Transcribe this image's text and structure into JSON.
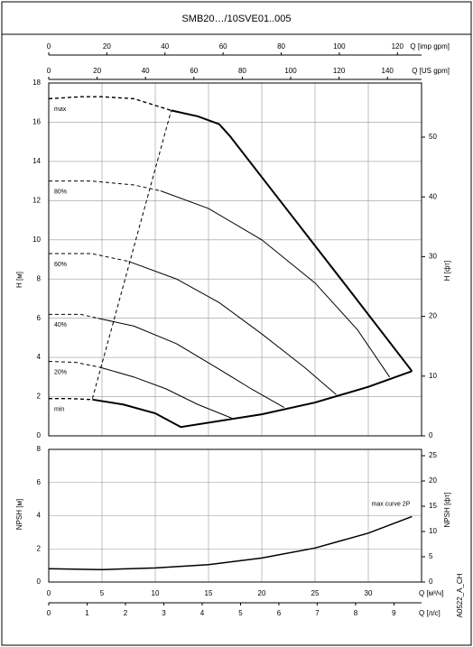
{
  "chart_data": [
    {
      "type": "line",
      "title": "SMB20…/10SVE01..005",
      "xlim": [
        0,
        35
      ],
      "xticks": [
        0,
        5,
        10,
        15,
        20,
        25,
        30
      ],
      "ylim": [
        0,
        18
      ],
      "yticks": [
        0,
        2,
        4,
        6,
        8,
        10,
        12,
        14,
        16,
        18
      ],
      "ylabel": "H [м]",
      "y2lim": [
        0,
        59.06
      ],
      "y2ticks": [
        0,
        10,
        20,
        30,
        40,
        50
      ],
      "y2label": "H [фт]",
      "top_axes": [
        {
          "label": "Q [imp gpm]",
          "lim": [
            0,
            128.3
          ],
          "ticks": [
            0,
            20,
            40,
            60,
            80,
            100,
            120
          ]
        },
        {
          "label": "Q [US gpm]",
          "lim": [
            0,
            154.1
          ],
          "ticks": [
            0,
            20,
            40,
            60,
            80,
            100,
            120,
            140
          ]
        }
      ],
      "grid": true,
      "color": "#000000",
      "series": [
        {
          "name": "max",
          "width": 2,
          "dashed_until_index": 4,
          "x": [
            0,
            3,
            5,
            8,
            11.5,
            14,
            16,
            17,
            22,
            28,
            34.1
          ],
          "values": [
            17.2,
            17.3,
            17.3,
            17.2,
            16.6,
            16.3,
            15.9,
            15.3,
            11.8,
            7.6,
            3.3
          ]
        },
        {
          "name": "80%",
          "width": 1,
          "dashed_until_index": 3,
          "x": [
            0,
            4,
            8,
            10.5,
            15,
            20,
            25,
            29,
            32
          ],
          "values": [
            13.0,
            13.0,
            12.8,
            12.5,
            11.6,
            10.0,
            7.8,
            5.4,
            3.0
          ]
        },
        {
          "name": "60%",
          "width": 1,
          "dashed_until_index": 2,
          "x": [
            0,
            4,
            7.5,
            12,
            16,
            20,
            24,
            27
          ],
          "values": [
            9.3,
            9.3,
            8.9,
            8.0,
            6.8,
            5.2,
            3.5,
            2.1
          ]
        },
        {
          "name": "40%",
          "width": 1,
          "dashed_until_index": 2,
          "x": [
            0,
            3,
            4.6,
            8,
            12,
            16,
            19,
            22.1
          ],
          "values": [
            6.2,
            6.2,
            6.0,
            5.6,
            4.7,
            3.4,
            2.4,
            1.45
          ]
        },
        {
          "name": "20%",
          "width": 1,
          "dashed_until_index": 2,
          "x": [
            0,
            2.5,
            4.8,
            8,
            11,
            14,
            17.2
          ],
          "values": [
            3.8,
            3.75,
            3.5,
            3.0,
            2.4,
            1.6,
            0.9
          ]
        },
        {
          "name": "min",
          "width": 2,
          "dashed_until_index": 2,
          "x": [
            0,
            2,
            4.1,
            7,
            10,
            12.4,
            20,
            25,
            30,
            34.1
          ],
          "values": [
            1.9,
            1.9,
            1.85,
            1.6,
            1.15,
            0.45,
            1.1,
            1.7,
            2.5,
            3.3
          ]
        },
        {
          "width": 1,
          "dashed_until_index": 1,
          "x": [
            4.1,
            11.5
          ],
          "values": [
            1.9,
            16.6
          ]
        }
      ]
    },
    {
      "type": "line",
      "xlim": [
        0,
        35
      ],
      "xticks": [
        0,
        5,
        10,
        15,
        20,
        25,
        30
      ],
      "xlabel": "Q [м³/ч]",
      "x2lim": [
        0,
        9.72
      ],
      "x2ticks": [
        0,
        1,
        2,
        3,
        4,
        5,
        6,
        7,
        8,
        9
      ],
      "x2label": "Q [л/с]",
      "ylim": [
        0,
        8
      ],
      "yticks": [
        0,
        2,
        4,
        6,
        8
      ],
      "ylabel": "NPSH [м]",
      "y2lim": [
        0,
        26.25
      ],
      "y2ticks": [
        0,
        5,
        10,
        15,
        20,
        25
      ],
      "y2label": "NPSH [фт]",
      "grid": true,
      "color": "#000000",
      "code": "A0522_A_CH",
      "series": [
        {
          "name": "max curve 2P",
          "width": 1.5,
          "dashed_until_index": 0,
          "x": [
            0,
            5,
            10,
            15,
            20,
            25,
            30,
            34.1
          ],
          "values": [
            0.8,
            0.75,
            0.85,
            1.05,
            1.45,
            2.05,
            2.95,
            3.95
          ]
        }
      ]
    }
  ]
}
